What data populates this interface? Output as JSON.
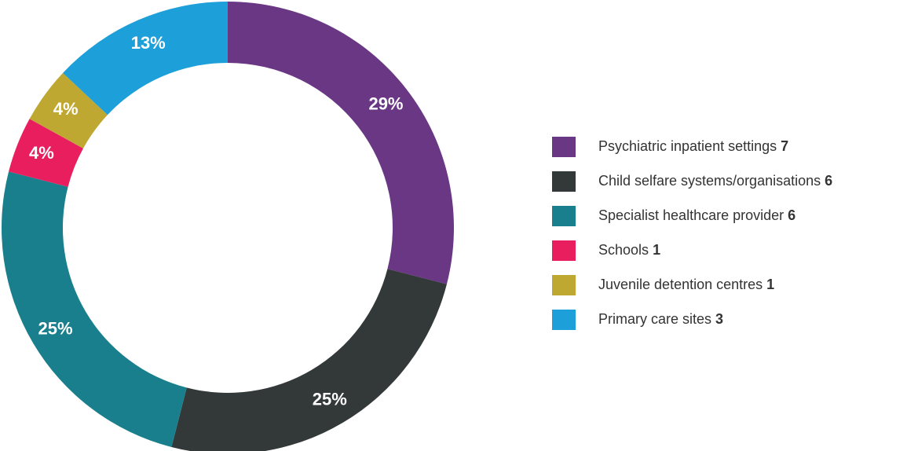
{
  "chart_data": {
    "type": "donut",
    "categories": [
      "Psychiatric inpatient settings",
      "Child selfare systems/organisations",
      "Specialist healthcare provider",
      "Schools",
      "Juvenile detention centres",
      "Primary care sites"
    ],
    "counts": [
      7,
      6,
      6,
      1,
      1,
      3
    ],
    "values": [
      29,
      25,
      25,
      4,
      4,
      13
    ],
    "value_labels": [
      "29%",
      "25%",
      "25%",
      "4%",
      "4%",
      "13%"
    ],
    "colors": [
      "#6a3785",
      "#333838",
      "#1a7f8c",
      "#e91e5f",
      "#bfa832",
      "#1d9fd9"
    ],
    "legend": "right"
  }
}
